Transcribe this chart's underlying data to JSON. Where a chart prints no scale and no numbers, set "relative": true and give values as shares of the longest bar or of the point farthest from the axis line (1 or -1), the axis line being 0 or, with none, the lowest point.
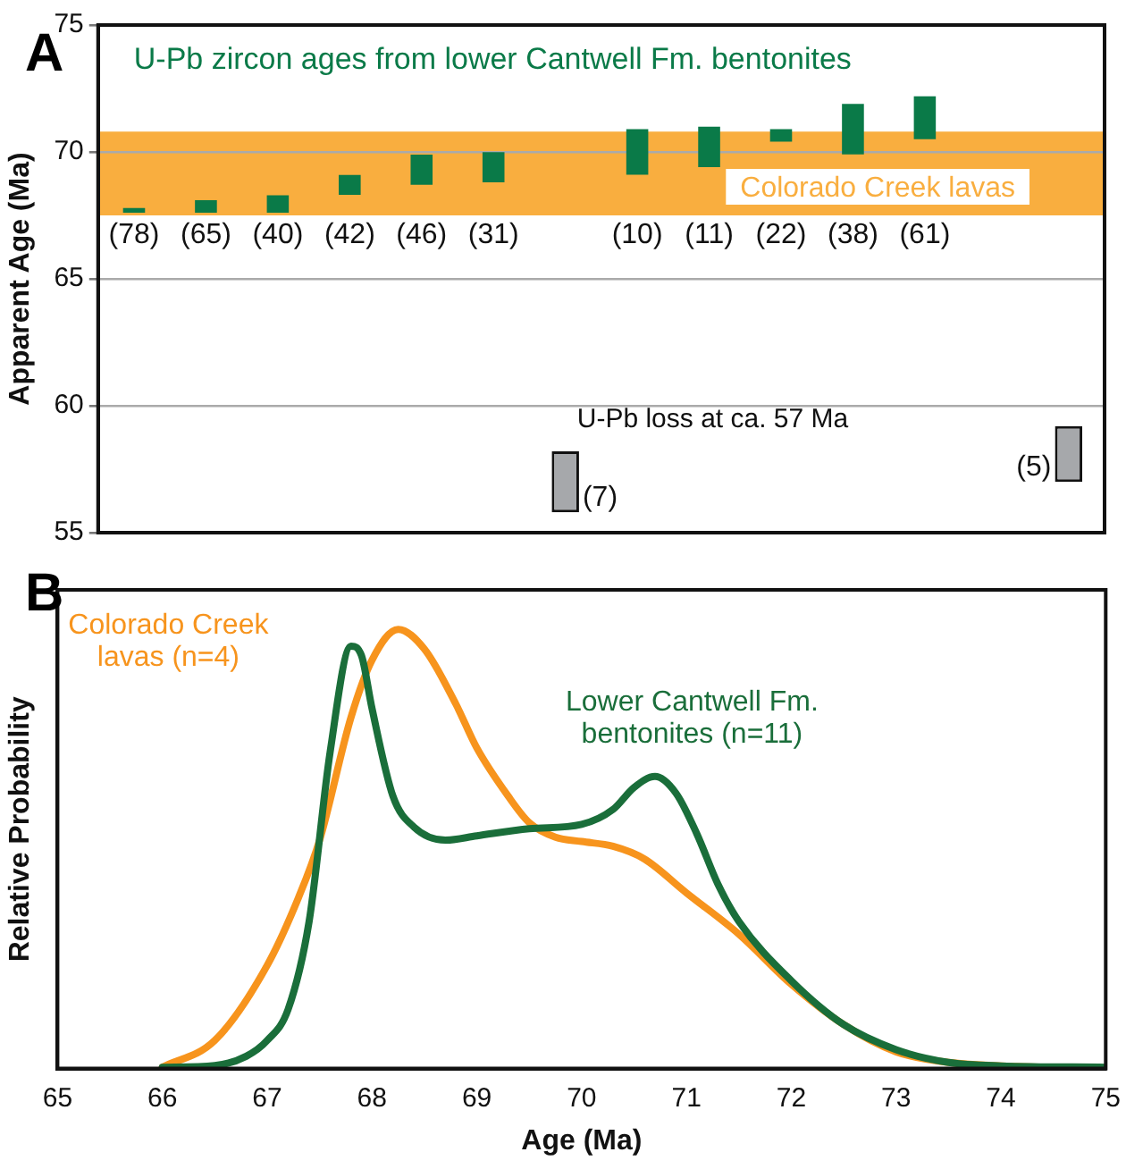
{
  "chart_data": [
    {
      "type": "bar",
      "title": "A",
      "ylabel": "Apparent Age (Ma)",
      "categories": [
        "(78)",
        "(65)",
        "(40)",
        "(42)",
        "(46)",
        "(31)",
        "(7)",
        "(10)",
        "(11)",
        "(22)",
        "(38)",
        "(61)",
        null,
        "(5)"
      ],
      "ylim": [
        55,
        75
      ],
      "yticks": [
        55,
        60,
        65,
        70,
        75
      ],
      "grid": "y",
      "legend": false,
      "series": [
        {
          "color": "#0a7a48",
          "colors": [
            "#0a7a48",
            "#0a7a48",
            "#0a7a48",
            "#0a7a48",
            "#0a7a48",
            "#0a7a48",
            "#a6a8ab",
            "#0a7a48",
            "#0a7a48",
            "#0a7a48",
            "#0a7a48",
            "#0a7a48",
            null,
            "#a6a8ab"
          ],
          "base": [
            67.5,
            67.5,
            67.5,
            68.2,
            68.6,
            68.7,
            55.8,
            69.0,
            69.3,
            70.3,
            69.8,
            70.4,
            null,
            57.0
          ],
          "values": [
            0.4,
            0.7,
            0.9,
            1.0,
            1.4,
            1.4,
            2.4,
            2.0,
            1.8,
            0.7,
            2.2,
            1.9,
            null,
            2.2
          ]
        }
      ],
      "bands": [
        {
          "axis": "y",
          "from": 67.5,
          "to": 70.8,
          "label": "Colorado Creek lavas",
          "color": "#f9ae3f"
        }
      ],
      "annotations": [
        "U-Pb zircon ages from lower Cantwell Fm. bentonites",
        "U-Pb loss at ca. 57 Ma"
      ]
    },
    {
      "type": "line",
      "title": "B",
      "xlabel": "Age (Ma)",
      "ylabel": "Relative Probability",
      "relative": true,
      "xlim": [
        65,
        75
      ],
      "xticks": [
        65,
        66,
        67,
        68,
        69,
        70,
        71,
        72,
        73,
        74,
        75
      ],
      "tick_labels": "x",
      "grid": false,
      "legend": false,
      "marker": "none",
      "line_style": "solid",
      "series": [
        {
          "name": "Lower Cantwell Fm. bentonites (n=11)",
          "color": "#1a6e3a",
          "x": [
            66,
            66.5,
            66.8,
            67,
            67.2,
            67.4,
            67.6,
            67.8,
            67.9,
            68,
            68.2,
            68.4,
            68.7,
            69,
            69.5,
            70,
            70.3,
            70.5,
            70.7,
            70.9,
            71.1,
            71.3,
            71.5,
            72,
            72.5,
            73,
            73.5,
            74,
            75
          ],
          "values": [
            0.003,
            0.007,
            0.028,
            0.064,
            0.135,
            0.335,
            0.72,
            0.962,
            0.94,
            0.82,
            0.62,
            0.55,
            0.52,
            0.53,
            0.546,
            0.556,
            0.59,
            0.64,
            0.665,
            0.627,
            0.534,
            0.42,
            0.335,
            0.2,
            0.1,
            0.043,
            0.014,
            0.006,
            0.003
          ]
        },
        {
          "name": "Colorado Creek lavas (n=4)",
          "color": "#f7941d",
          "x": [
            66,
            66.5,
            67,
            67.3,
            67.5,
            67.8,
            68,
            68.25,
            68.5,
            68.8,
            69,
            69.3,
            69.5,
            69.75,
            70,
            70.3,
            70.6,
            71,
            71.5,
            72,
            72.5,
            73,
            73.5,
            75
          ],
          "values": [
            0.003,
            0.064,
            0.235,
            0.39,
            0.52,
            0.8,
            0.93,
            1,
            0.955,
            0.83,
            0.73,
            0.62,
            0.56,
            0.527,
            0.517,
            0.506,
            0.477,
            0.4,
            0.306,
            0.192,
            0.1,
            0.038,
            0.014,
            0
          ]
        }
      ]
    }
  ]
}
